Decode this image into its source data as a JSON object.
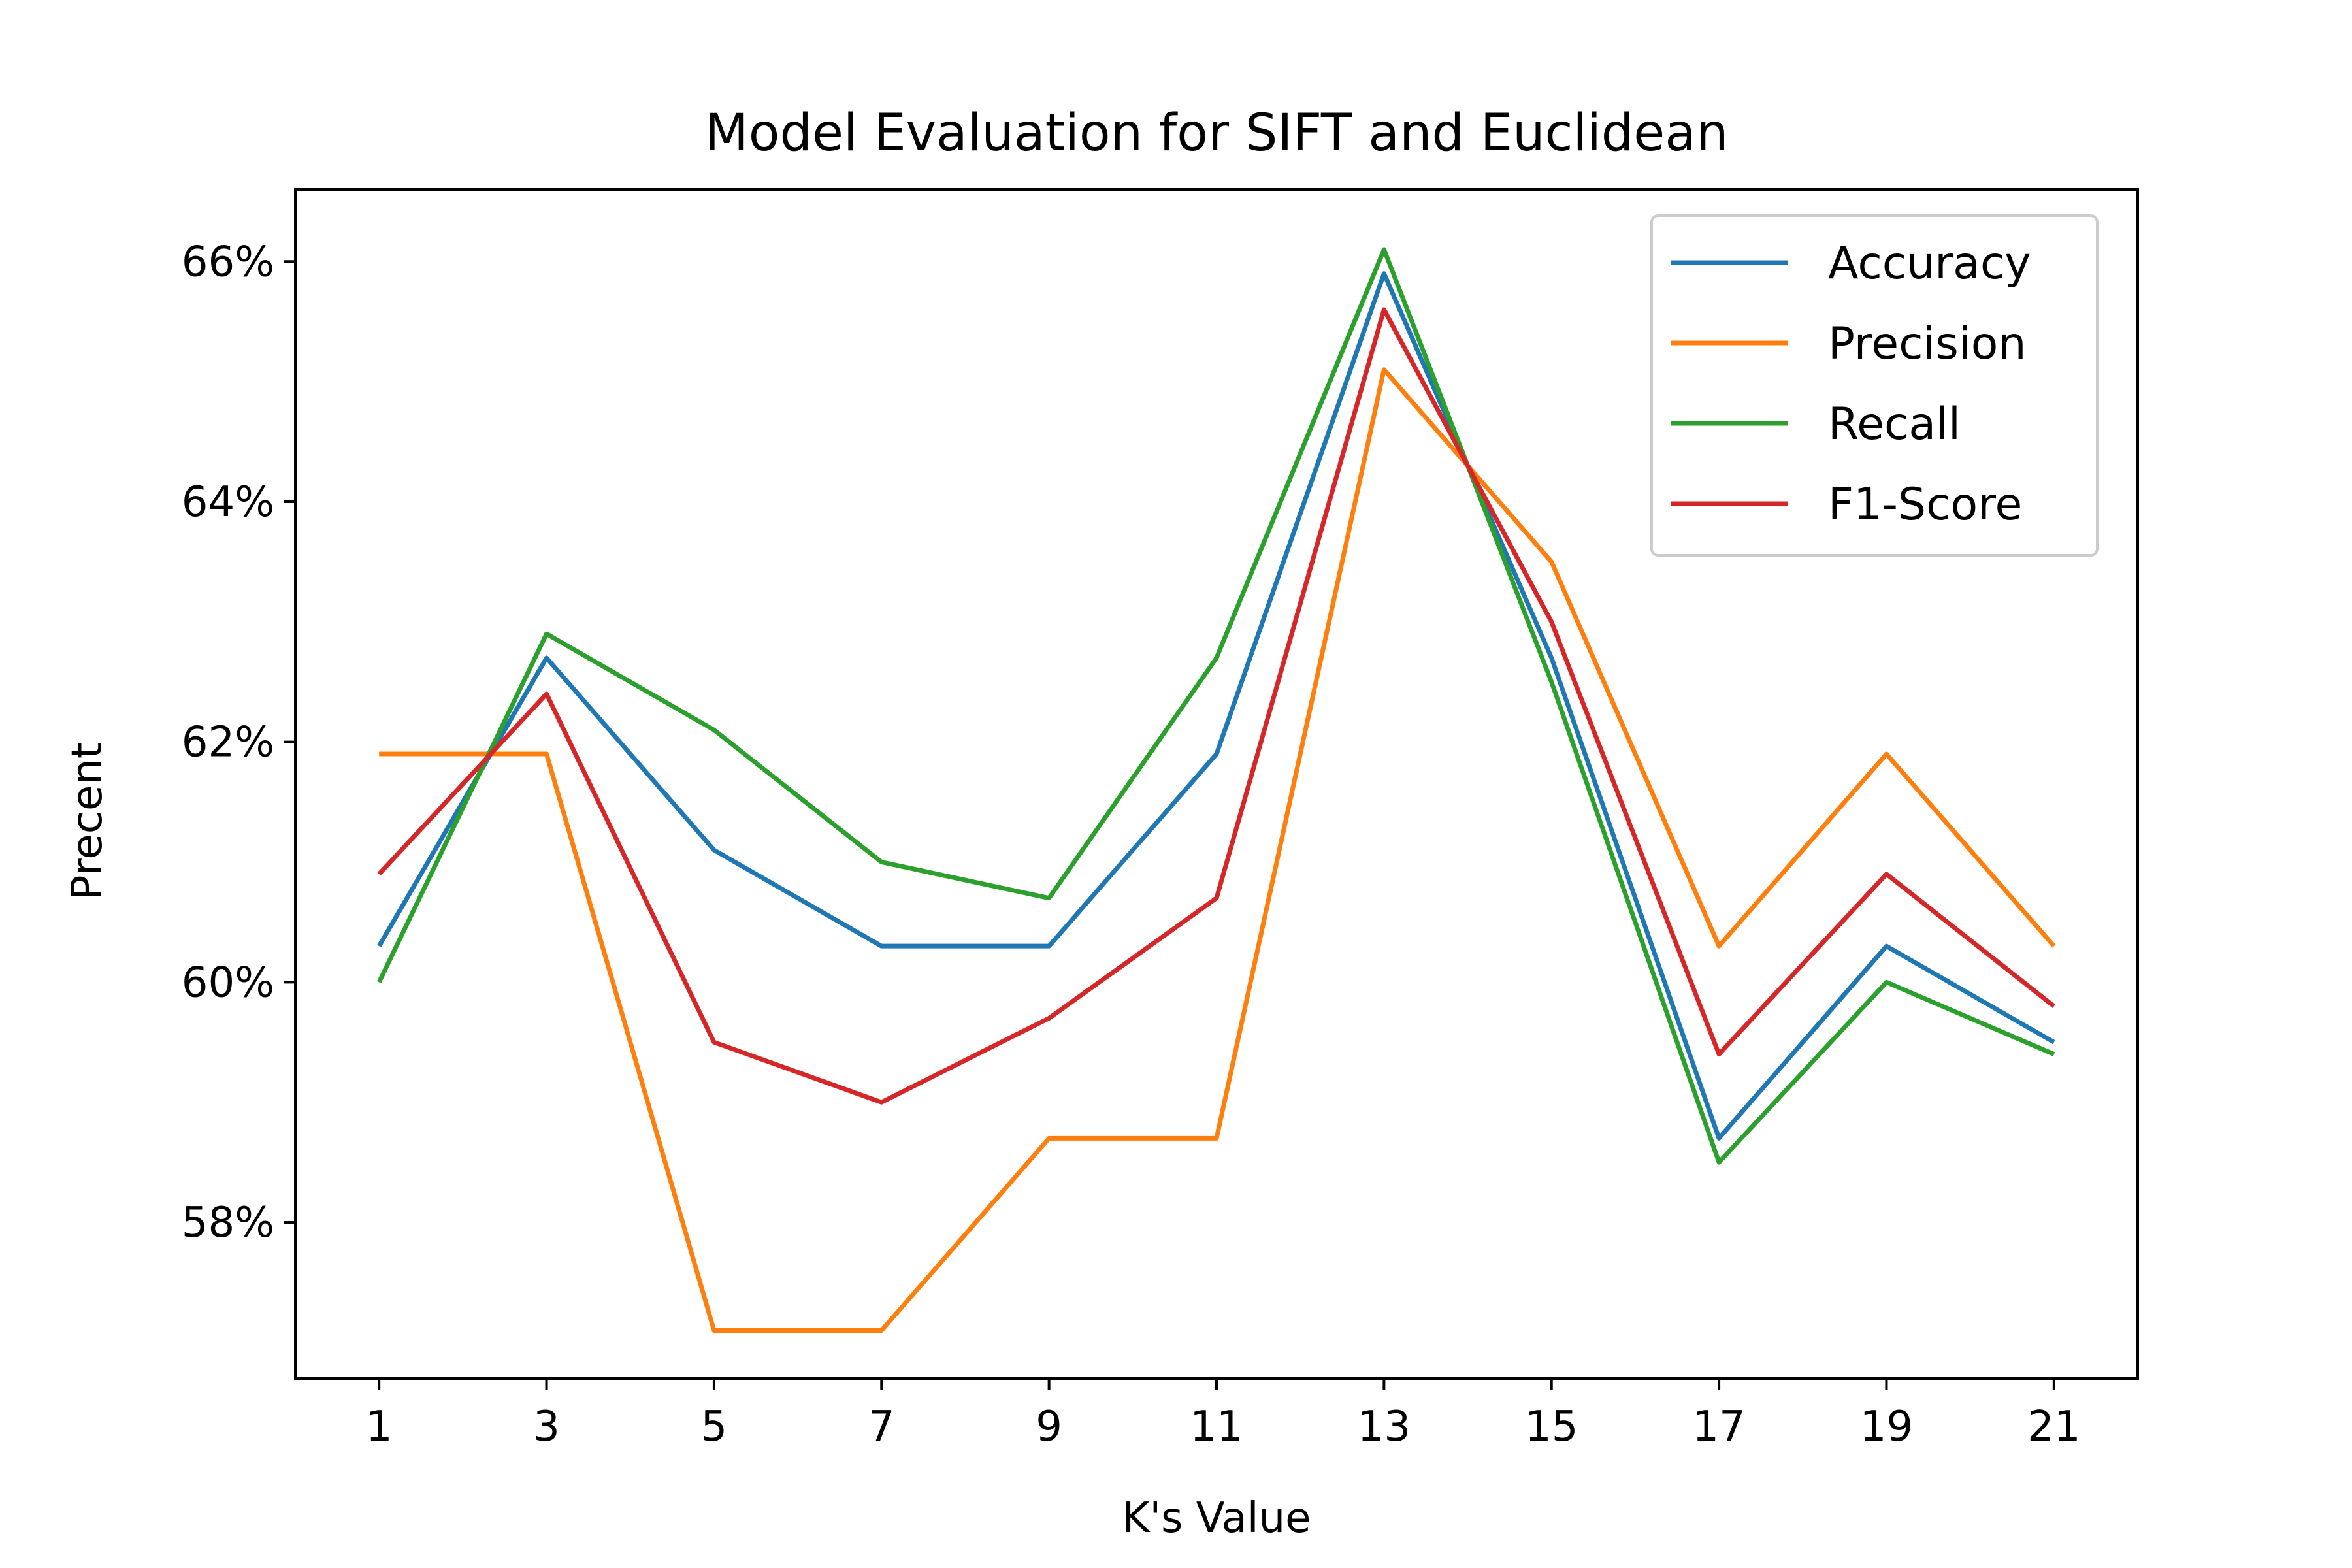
{
  "chart_data": {
    "type": "line",
    "title": "Model Evaluation for SIFT and Euclidean",
    "xlabel": "K's Value",
    "ylabel": "Precent",
    "x": [
      1,
      3,
      5,
      7,
      9,
      11,
      13,
      15,
      17,
      19,
      21
    ],
    "x_ticks": [
      "1",
      "3",
      "5",
      "7",
      "9",
      "11",
      "13",
      "15",
      "17",
      "19",
      "21"
    ],
    "y_ticks": [
      {
        "value": 58,
        "label": "58%"
      },
      {
        "value": 60,
        "label": "60%"
      },
      {
        "value": 62,
        "label": "62%"
      },
      {
        "value": 64,
        "label": "64%"
      },
      {
        "value": 66,
        "label": "66%"
      }
    ],
    "xlim": [
      0,
      22
    ],
    "ylim": [
      56.7,
      66.6
    ],
    "grid": false,
    "legend_position": "top-right",
    "series": [
      {
        "name": "Accuracy",
        "color": "#1f77b4",
        "values": [
          60.3,
          62.7,
          61.1,
          60.3,
          60.3,
          61.9,
          65.9,
          62.7,
          58.7,
          60.3,
          59.5
        ]
      },
      {
        "name": "Precision",
        "color": "#ff7f0e",
        "values": [
          61.9,
          61.9,
          57.1,
          57.1,
          58.7,
          58.7,
          65.1,
          63.5,
          60.3,
          61.9,
          60.3
        ]
      },
      {
        "name": "Recall",
        "color": "#2ca02c",
        "values": [
          60.0,
          62.9,
          62.1,
          61.0,
          60.7,
          62.7,
          66.1,
          62.5,
          58.5,
          60.0,
          59.4
        ]
      },
      {
        "name": "F1-Score",
        "color": "#d62728",
        "values": [
          60.9,
          62.4,
          59.5,
          59.0,
          59.7,
          60.7,
          65.6,
          63.0,
          59.4,
          60.9,
          59.8
        ]
      }
    ]
  }
}
